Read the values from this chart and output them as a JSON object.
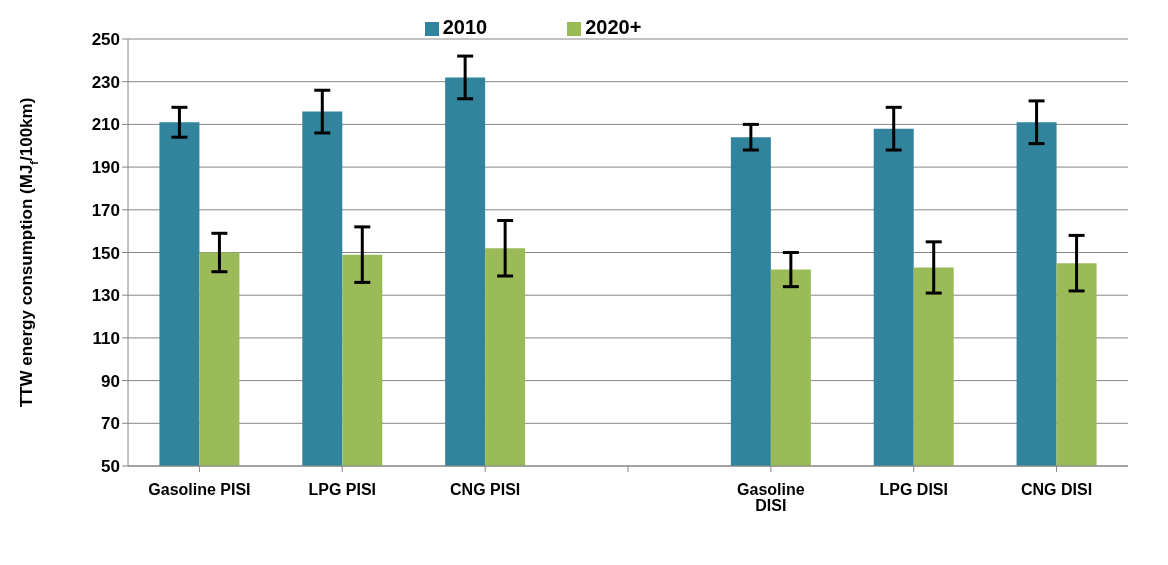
{
  "chart_data": {
    "type": "bar",
    "ylabel": "TTW energy consumption (MJ$_{f}$/100km)",
    "categories": [
      "Gasoline PISI",
      "LPG PISI",
      "CNG PISI",
      null,
      "Gasoline DISI",
      "LPG DISI",
      "CNG DISI"
    ],
    "series": [
      {
        "name": "2010",
        "color": "#31849b",
        "values": [
          211,
          216,
          232,
          null,
          204,
          208,
          211
        ],
        "errors": [
          7,
          10,
          10,
          null,
          6,
          10,
          10
        ]
      },
      {
        "name": "2020+",
        "color": "#9bbb59",
        "values": [
          150,
          149,
          152,
          null,
          142,
          143,
          145
        ],
        "errors": [
          9,
          13,
          13,
          null,
          8,
          12,
          13
        ]
      }
    ],
    "ylim": [
      50,
      250
    ],
    "yticks": [
      50,
      70,
      90,
      110,
      130,
      150,
      170,
      190,
      210,
      230,
      250
    ],
    "grid": "y",
    "legend": "top"
  }
}
